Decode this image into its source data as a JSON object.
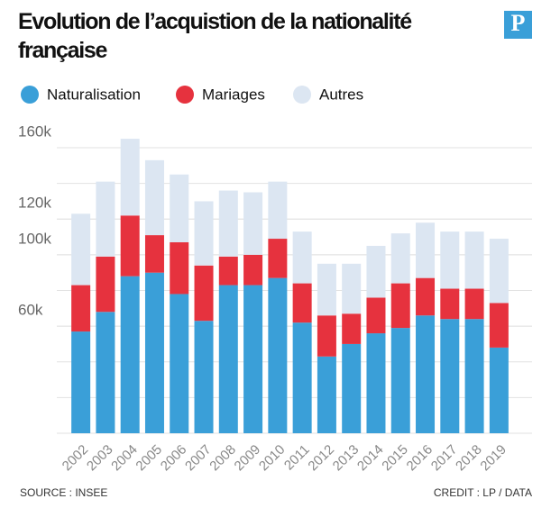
{
  "chart_data": {
    "type": "stacked_bar",
    "title": "Evolution de l’acquistion de la nationalité française",
    "logo": "P",
    "categories": [
      "2002",
      "2003",
      "2004",
      "2005",
      "2006",
      "2007",
      "2008",
      "2009",
      "2010",
      "2011",
      "2012",
      "2013",
      "2014",
      "2015",
      "2016",
      "2017",
      "2018",
      "2019"
    ],
    "series": [
      {
        "name": "Naturalisation",
        "color": "#3a9fd8",
        "values": [
          57000,
          68000,
          88000,
          90000,
          78000,
          63000,
          83000,
          83000,
          87000,
          62000,
          43000,
          50000,
          56000,
          59000,
          66000,
          64000,
          64000,
          48000
        ]
      },
      {
        "name": "Mariages",
        "color": "#e6323e",
        "values": [
          26000,
          31000,
          34000,
          21000,
          29000,
          31000,
          16000,
          17000,
          22000,
          22000,
          23000,
          17000,
          20000,
          25000,
          21000,
          17000,
          17000,
          25000
        ]
      },
      {
        "name": "Autres",
        "color": "#dce6f2",
        "values": [
          40000,
          42000,
          43000,
          42000,
          38000,
          36000,
          37000,
          35000,
          32000,
          29000,
          29000,
          28000,
          29000,
          28000,
          31000,
          32000,
          32000,
          36000
        ]
      }
    ],
    "ylim": [
      0,
      160000
    ],
    "yticks": [
      {
        "value": 60000,
        "label": "60k"
      },
      {
        "value": 100000,
        "label": "100k"
      },
      {
        "value": 120000,
        "label": "120k"
      },
      {
        "value": 160000,
        "label": "160k"
      }
    ],
    "grid_step": 20000,
    "grid": true,
    "source": "SOURCE : INSEE",
    "credit": "CREDIT : LP / DATA"
  }
}
